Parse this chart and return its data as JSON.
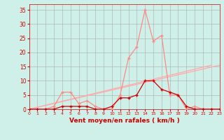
{
  "x": [
    0,
    1,
    2,
    3,
    4,
    5,
    6,
    7,
    8,
    9,
    10,
    11,
    12,
    13,
    14,
    15,
    16,
    17,
    18,
    19,
    20,
    21,
    22,
    23
  ],
  "y_rafales": [
    0,
    0,
    0,
    1,
    6,
    6,
    2,
    3,
    1,
    0,
    0,
    5,
    18,
    22,
    35,
    24,
    26,
    5,
    5,
    0,
    1,
    0,
    0,
    0
  ],
  "y_moyen": [
    0,
    0,
    0,
    0,
    1,
    1,
    1,
    1,
    0,
    0,
    1,
    4,
    4,
    5,
    10,
    10,
    7,
    6,
    5,
    1,
    0,
    0,
    0,
    0
  ],
  "background_color": "#cef0e8",
  "grid_color": "#aaaaaa",
  "line_color_rafales": "#ff8888",
  "line_color_moyen": "#cc0000",
  "trend_color": "#ffaaaa",
  "xlabel": "Vent moyen/en rafales ( km/h )",
  "xlim": [
    0,
    23
  ],
  "ylim": [
    0,
    37
  ],
  "xticks": [
    0,
    1,
    2,
    3,
    4,
    5,
    6,
    7,
    8,
    9,
    10,
    11,
    12,
    13,
    14,
    15,
    16,
    17,
    18,
    19,
    20,
    21,
    22,
    23
  ],
  "yticks": [
    0,
    5,
    10,
    15,
    20,
    25,
    30,
    35
  ],
  "label_color": "#cc0000",
  "tick_color": "#cc0000",
  "marker_size": 2.5,
  "linewidth": 0.9,
  "trend1_x": [
    0,
    23
  ],
  "trend1_y": [
    0,
    15.5
  ],
  "trend2_x": [
    0,
    22
  ],
  "trend2_y": [
    0,
    15.5
  ]
}
